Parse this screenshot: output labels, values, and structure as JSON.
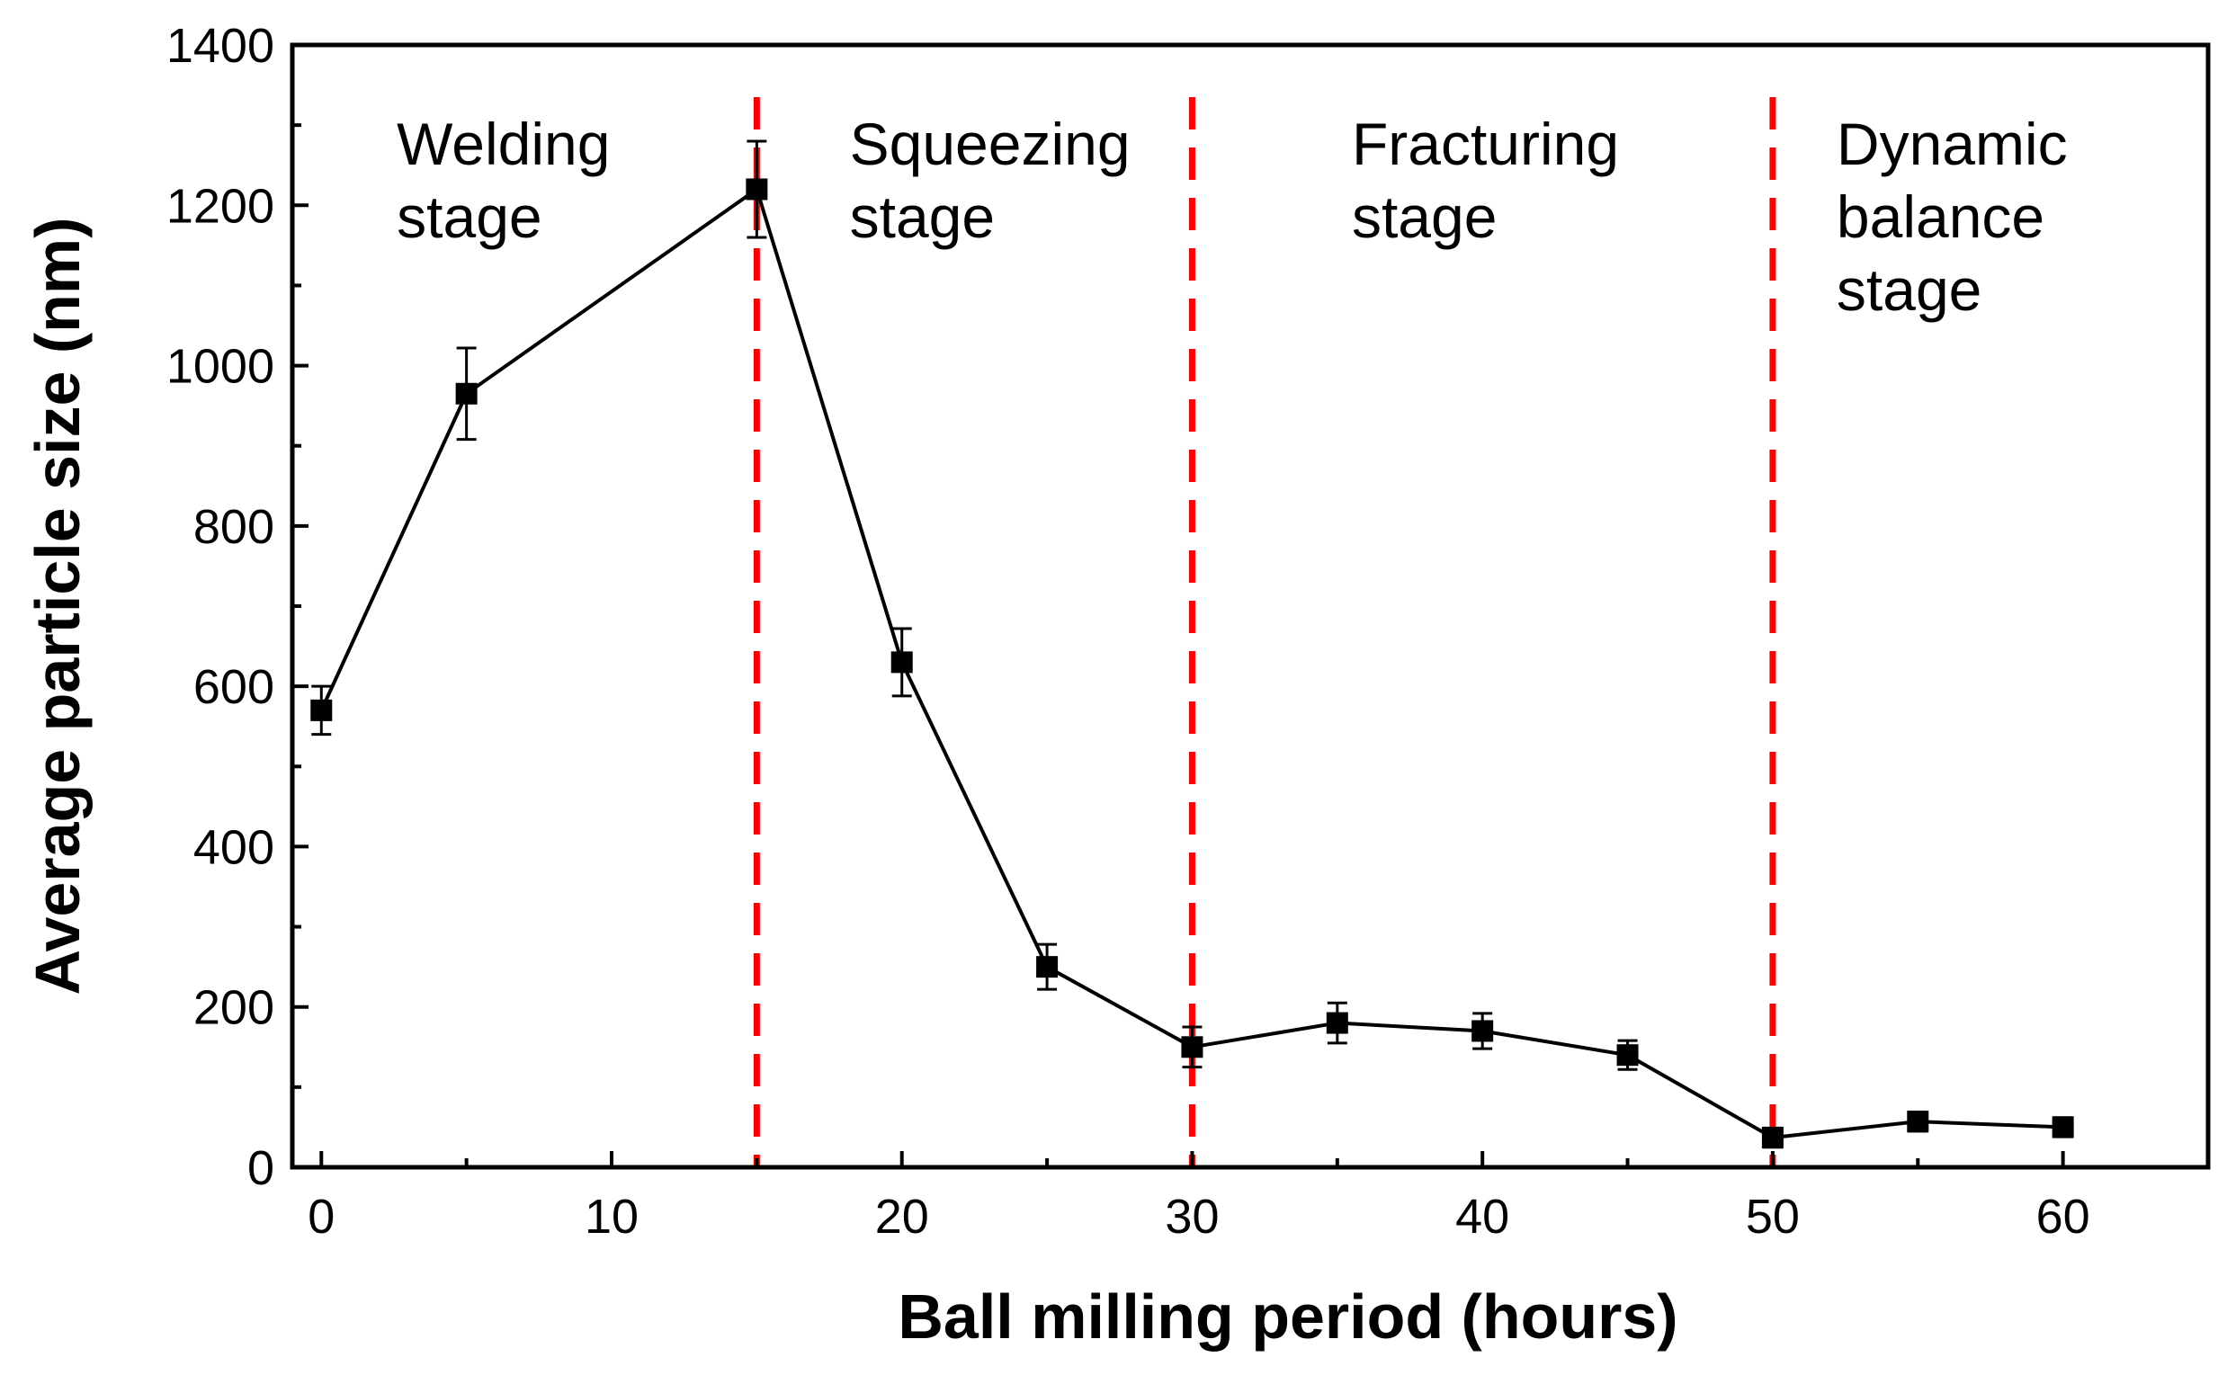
{
  "chart_data": {
    "type": "line",
    "xlabel": "Ball milling period (hours)",
    "ylabel": "Average particle size (nm)",
    "xlim": [
      -1,
      65
    ],
    "ylim": [
      0,
      1400
    ],
    "x_ticks": [
      0,
      10,
      20,
      30,
      40,
      50,
      60
    ],
    "y_ticks": [
      0,
      200,
      400,
      600,
      800,
      1000,
      1200,
      1400
    ],
    "grid": false,
    "legend": "none",
    "colors": {
      "series": "#000000",
      "boundary": "#ff0000"
    },
    "series": [
      {
        "x": [
          0,
          5,
          15,
          20,
          25,
          30,
          35,
          40,
          45,
          50,
          55,
          60
        ],
        "y": [
          570,
          965,
          1220,
          630,
          250,
          150,
          180,
          170,
          140,
          37,
          57,
          50
        ],
        "err": [
          30,
          57,
          60,
          42,
          28,
          25,
          25,
          22,
          18,
          12,
          12,
          12
        ]
      }
    ],
    "stage_boundaries": [
      15,
      30,
      50
    ],
    "stages": [
      {
        "lines": [
          "Welding",
          "stage"
        ],
        "x": 2.6
      },
      {
        "lines": [
          "Squeezing",
          "stage"
        ],
        "x": 18.2
      },
      {
        "lines": [
          "Fracturing",
          "stage"
        ],
        "x": 35.5
      },
      {
        "lines": [
          "Dynamic",
          "balance",
          "stage"
        ],
        "x": 52.2
      }
    ]
  }
}
